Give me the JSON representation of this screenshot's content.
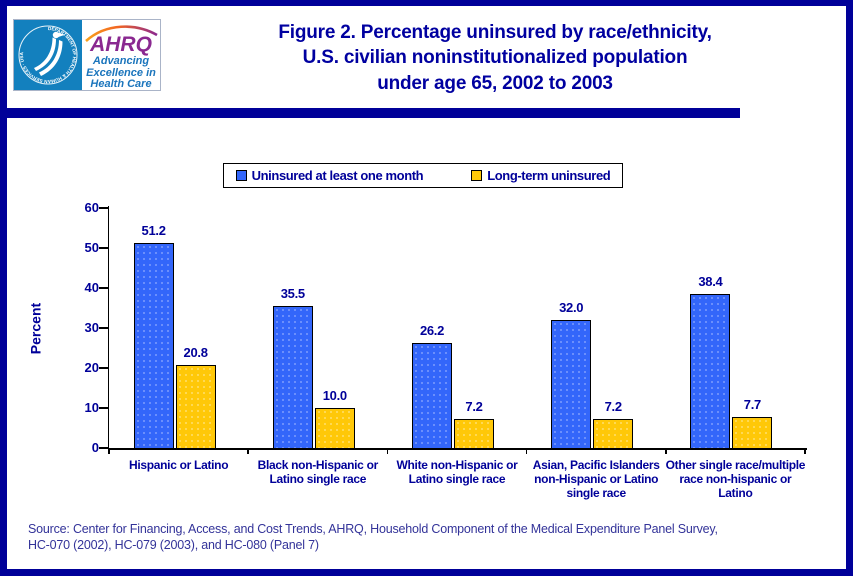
{
  "header": {
    "title_lines": [
      "Figure 2. Percentage uninsured by race/ethnicity,",
      "U.S. civilian noninstitutionalized population",
      "under age 65, 2002 to 2003"
    ],
    "logo": {
      "seal_text": "DEPARTMENT OF HEALTH & HUMAN SERVICES · USA",
      "ahrq": "AHRQ",
      "tagline_lines": [
        "Advancing",
        "Excellence in",
        "Health Care"
      ]
    }
  },
  "chart_data": {
    "type": "bar",
    "categories": [
      "Hispanic or Latino",
      "Black non-Hispanic or Latino single race",
      "White non-Hispanic or Latino single race",
      "Asian, Pacific Islanders non-Hispanic or Latino single race",
      "Other single race/multiple race non-hispanic or Latino"
    ],
    "series": [
      {
        "name": "Uninsured at least one month",
        "color": "#3366fa",
        "dot_color": "#7e9dfc",
        "values": [
          51.2,
          35.5,
          26.2,
          32.0,
          38.4
        ]
      },
      {
        "name": "Long-term uninsured",
        "color": "#ffc808",
        "dot_color": "#ffdf6e",
        "values": [
          20.8,
          10.0,
          7.2,
          7.2,
          7.7
        ]
      }
    ],
    "title": "Figure 2. Percentage uninsured by race/ethnicity, U.S. civilian noninstitutionalized population under age 65, 2002 to 2003",
    "xlabel": "",
    "ylabel": "Percent",
    "ylim": [
      0,
      60
    ],
    "yticks": [
      0,
      10,
      20,
      30,
      40,
      50,
      60
    ],
    "grid": false,
    "legend_position": "top",
    "value_labels": true
  },
  "source": {
    "lines": [
      "Source: Center for Financing, Access, and Cost Trends, AHRQ, Household Component of the Medical Expenditure Panel Survey,",
      "HC-070 (2002), HC-079 (2003), and HC-080 (Panel 7)"
    ]
  },
  "colors": {
    "navy": "#000099",
    "title_blue": "#0000a0",
    "axis_black": "#000000",
    "hhs_blue": "#1380be",
    "ahrq_purple": "#8a2890",
    "tagline_blue": "#1b75bc"
  }
}
